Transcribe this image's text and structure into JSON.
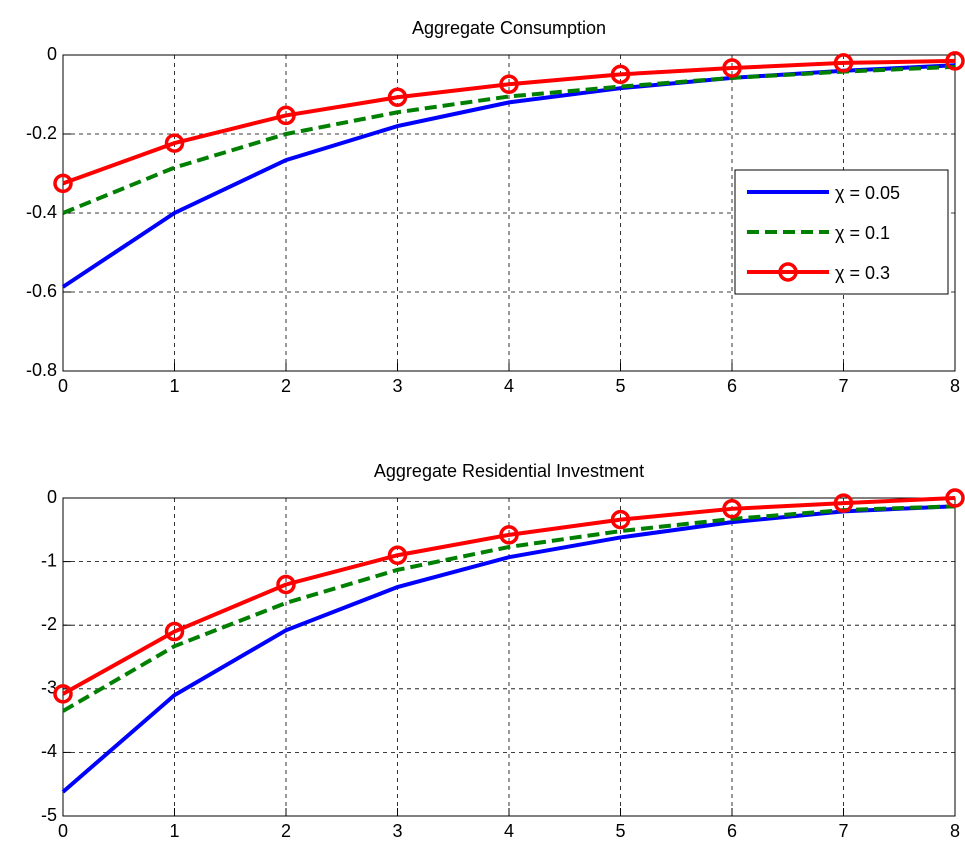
{
  "chart_data": [
    {
      "type": "line",
      "title": "Aggregate Consumption",
      "x": [
        0,
        1,
        2,
        3,
        4,
        5,
        6,
        7,
        8
      ],
      "xlim": [
        0,
        8
      ],
      "xticks": [
        0,
        1,
        2,
        3,
        4,
        5,
        6,
        7,
        8
      ],
      "ylim": [
        -0.8,
        0
      ],
      "yticks": [
        -0.8,
        -0.6,
        -0.4,
        -0.2,
        0
      ],
      "grid": true,
      "legend": "right",
      "series": [
        {
          "name": "χ = 0.05",
          "color": "#0000ff",
          "line_style": "solid",
          "values": [
            -0.587,
            -0.4,
            -0.266,
            -0.18,
            -0.12,
            -0.084,
            -0.058,
            -0.04,
            -0.026
          ]
        },
        {
          "name": "χ = 0.1",
          "color": "#008000",
          "line_style": "dashed",
          "values": [
            -0.4,
            -0.285,
            -0.2,
            -0.145,
            -0.105,
            -0.08,
            -0.058,
            -0.042,
            -0.03
          ]
        },
        {
          "name": "χ = 0.3",
          "color": "#ff0000",
          "line_style": "solid",
          "marker": "circle",
          "values": [
            -0.325,
            -0.223,
            -0.153,
            -0.107,
            -0.074,
            -0.049,
            -0.033,
            -0.02,
            -0.015
          ]
        }
      ]
    },
    {
      "type": "line",
      "title": "Aggregate Residential Investment",
      "x": [
        0,
        1,
        2,
        3,
        4,
        5,
        6,
        7,
        8
      ],
      "xlim": [
        0,
        8
      ],
      "xticks": [
        0,
        1,
        2,
        3,
        4,
        5,
        6,
        7,
        8
      ],
      "ylim": [
        -5,
        0
      ],
      "yticks": [
        -5,
        -4,
        -3,
        -2,
        -1,
        0
      ],
      "grid": true,
      "series": [
        {
          "color": "#0000ff",
          "line_style": "solid",
          "values": [
            -4.62,
            -3.1,
            -2.08,
            -1.4,
            -0.93,
            -0.62,
            -0.38,
            -0.21,
            -0.13
          ]
        },
        {
          "color": "#008000",
          "line_style": "dashed",
          "values": [
            -3.35,
            -2.33,
            -1.65,
            -1.13,
            -0.77,
            -0.52,
            -0.33,
            -0.19,
            -0.13
          ]
        },
        {
          "color": "#ff0000",
          "line_style": "solid",
          "marker": "circle",
          "values": [
            -3.08,
            -2.1,
            -1.36,
            -0.9,
            -0.58,
            -0.34,
            -0.17,
            -0.08,
            0
          ]
        }
      ]
    }
  ]
}
